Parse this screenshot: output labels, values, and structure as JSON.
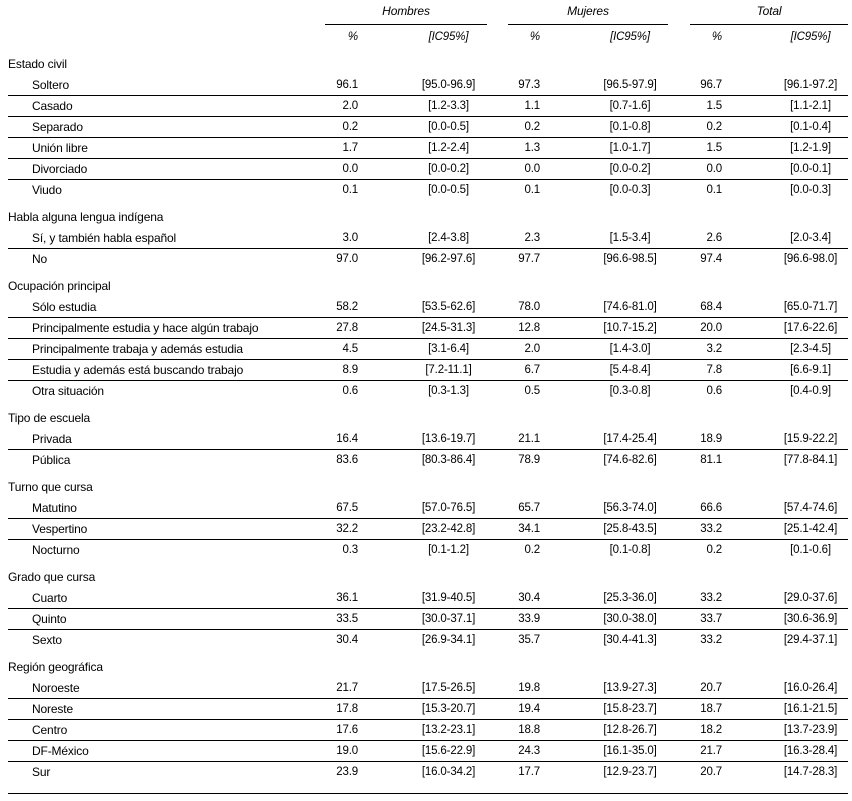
{
  "colors": {
    "text": "#000000",
    "line": "#000000",
    "background": "#ffffff"
  },
  "table": {
    "col_groups": [
      {
        "label": "Hombres"
      },
      {
        "label": "Mujeres"
      },
      {
        "label": "Total"
      }
    ],
    "sub_headers": {
      "pct": "%",
      "ic": "[IC95%]"
    },
    "sections": [
      {
        "title": "Estado civil",
        "rows": [
          {
            "label": "Soltero",
            "cells": [
              "96.1",
              "[95.0-96.9]",
              "97.3",
              "[96.5-97.9]",
              "96.7",
              "[96.1-97.2]"
            ]
          },
          {
            "label": "Casado",
            "cells": [
              "2.0",
              "[1.2-3.3]",
              "1.1",
              "[0.7-1.6]",
              "1.5",
              "[1.1-2.1]"
            ]
          },
          {
            "label": "Separado",
            "cells": [
              "0.2",
              "[0.0-0.5]",
              "0.2",
              "[0.1-0.8]",
              "0.2",
              "[0.1-0.4]"
            ]
          },
          {
            "label": "Unión libre",
            "cells": [
              "1.7",
              "[1.2-2.4]",
              "1.3",
              "[1.0-1.7]",
              "1.5",
              "[1.2-1.9]"
            ]
          },
          {
            "label": "Divorciado",
            "cells": [
              "0.0",
              "[0.0-0.2]",
              "0.0",
              "[0.0-0.2]",
              "0.0",
              "[0.0-0.1]"
            ]
          },
          {
            "label": "Viudo",
            "cells": [
              "0.1",
              "[0.0-0.5]",
              "0.1",
              "[0.0-0.3]",
              "0.1",
              "[0.0-0.3]"
            ]
          }
        ]
      },
      {
        "title": "Habla alguna lengua indígena",
        "rows": [
          {
            "label": "Sí, y también habla español",
            "cells": [
              "3.0",
              "[2.4-3.8]",
              "2.3",
              "[1.5-3.4]",
              "2.6",
              "[2.0-3.4]"
            ]
          },
          {
            "label": "No",
            "cells": [
              "97.0",
              "[96.2-97.6]",
              "97.7",
              "[96.6-98.5]",
              "97.4",
              "[96.6-98.0]"
            ]
          }
        ]
      },
      {
        "title": "Ocupación principal",
        "rows": [
          {
            "label": "Sólo estudia",
            "cells": [
              "58.2",
              "[53.5-62.6]",
              "78.0",
              "[74.6-81.0]",
              "68.4",
              "[65.0-71.7]"
            ]
          },
          {
            "label": "Principalmente estudia y hace algún trabajo",
            "cells": [
              "27.8",
              "[24.5-31.3]",
              "12.8",
              "[10.7-15.2]",
              "20.0",
              "[17.6-22.6]"
            ]
          },
          {
            "label": "Principalmente trabaja y además estudia",
            "cells": [
              "4.5",
              "[3.1-6.4]",
              "2.0",
              "[1.4-3.0]",
              "3.2",
              "[2.3-4.5]"
            ]
          },
          {
            "label": "Estudia y además está buscando trabajo",
            "cells": [
              "8.9",
              "[7.2-11.1]",
              "6.7",
              "[5.4-8.4]",
              "7.8",
              "[6.6-9.1]"
            ]
          },
          {
            "label": "Otra situación",
            "cells": [
              "0.6",
              "[0.3-1.3]",
              "0.5",
              "[0.3-0.8]",
              "0.6",
              "[0.4-0.9]"
            ]
          }
        ]
      },
      {
        "title": "Tipo de escuela",
        "rows": [
          {
            "label": "Privada",
            "cells": [
              "16.4",
              "[13.6-19.7]",
              "21.1",
              "[17.4-25.4]",
              "18.9",
              "[15.9-22.2]"
            ]
          },
          {
            "label": "Pública",
            "cells": [
              "83.6",
              "[80.3-86.4]",
              "78.9",
              "[74.6-82.6]",
              "81.1",
              "[77.8-84.1]"
            ]
          }
        ]
      },
      {
        "title": "Turno que cursa",
        "rows": [
          {
            "label": "Matutino",
            "cells": [
              "67.5",
              "[57.0-76.5]",
              "65.7",
              "[56.3-74.0]",
              "66.6",
              "[57.4-74.6]"
            ]
          },
          {
            "label": "Vespertino",
            "cells": [
              "32.2",
              "[23.2-42.8]",
              "34.1",
              "[25.8-43.5]",
              "33.2",
              "[25.1-42.4]"
            ]
          },
          {
            "label": "Nocturno",
            "cells": [
              "0.3",
              "[0.1-1.2]",
              "0.2",
              "[0.1-0.8]",
              "0.2",
              "[0.1-0.6]"
            ]
          }
        ]
      },
      {
        "title": "Grado que cursa",
        "rows": [
          {
            "label": "Cuarto",
            "cells": [
              "36.1",
              "[31.9-40.5]",
              "30.4",
              "[25.3-36.0]",
              "33.2",
              "[29.0-37.6]"
            ]
          },
          {
            "label": "Quinto",
            "cells": [
              "33.5",
              "[30.0-37.1]",
              "33.9",
              "[30.0-38.0]",
              "33.7",
              "[30.6-36.9]"
            ]
          },
          {
            "label": "Sexto",
            "cells": [
              "30.4",
              "[26.9-34.1]",
              "35.7",
              "[30.4-41.3]",
              "33.2",
              "[29.4-37.1]"
            ]
          }
        ]
      },
      {
        "title": "Región geográfica",
        "rows": [
          {
            "label": "Noroeste",
            "cells": [
              "21.7",
              "[17.5-26.5]",
              "19.8",
              "[13.9-27.3]",
              "20.7",
              "[16.0-26.4]"
            ]
          },
          {
            "label": "Noreste",
            "cells": [
              "17.8",
              "[15.3-20.7]",
              "19.4",
              "[15.8-23.7]",
              "18.7",
              "[16.1-21.5]"
            ]
          },
          {
            "label": "Centro",
            "cells": [
              "17.6",
              "[13.2-23.1]",
              "18.8",
              "[12.8-26.7]",
              "18.2",
              "[13.7-23.9]"
            ]
          },
          {
            "label": "DF-México",
            "cells": [
              "19.0",
              "[15.6-22.9]",
              "24.3",
              "[16.1-35.0]",
              "21.7",
              "[16.3-28.4]"
            ]
          },
          {
            "label": "Sur",
            "cells": [
              "23.9",
              "[16.0-34.2]",
              "17.7",
              "[12.9-23.7]",
              "20.7",
              "[14.7-28.3]"
            ]
          }
        ]
      }
    ]
  }
}
